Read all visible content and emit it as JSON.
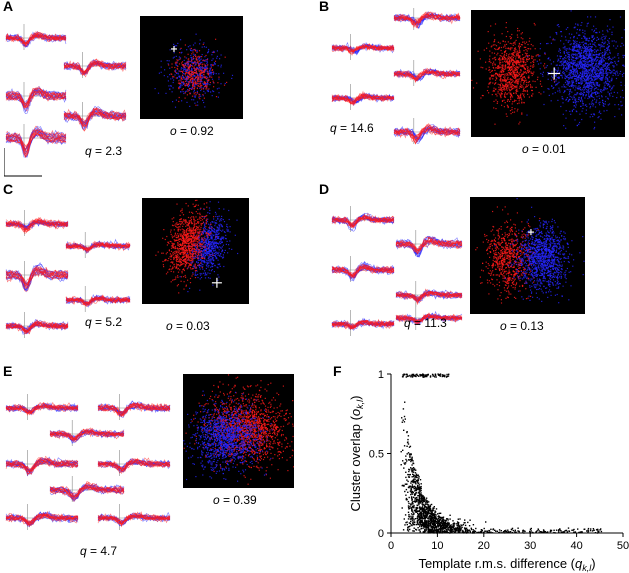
{
  "panels": [
    {
      "label": "A",
      "q": "2.3",
      "o": "0.92"
    },
    {
      "label": "B",
      "q": "14.6",
      "o": "0.01"
    },
    {
      "label": "C",
      "q": "5.2",
      "o": "0.03"
    },
    {
      "label": "D",
      "q": "11.3",
      "o": "0.13"
    },
    {
      "label": "E",
      "q": "4.7",
      "o": "0.39"
    },
    {
      "label": "F"
    }
  ],
  "q_prefix": "q",
  "o_prefix": "o",
  "eq": " = ",
  "colors": {
    "red": "#ff1a1a",
    "blue": "#2626ff",
    "bg": "#000000"
  },
  "chart_data": {
    "type": "scatter",
    "title": "",
    "xlabel_main": "Template r.m.s. difference (",
    "xlabel_var": "q",
    "xlabel_sub": "k,l",
    "xlabel_close": ")",
    "ylabel_main": "Cluster overlap (",
    "ylabel_var": "o",
    "ylabel_sub": "k,l",
    "ylabel_close": ")",
    "xlim": [
      0,
      50
    ],
    "ylim": [
      0,
      1
    ],
    "xticks": [
      0,
      10,
      20,
      30,
      40,
      50
    ],
    "yticks": [
      0,
      0.5,
      1
    ],
    "ytick_labels": [
      "0",
      "0.5",
      "1"
    ],
    "point_color": "#000000",
    "distribution": {
      "n_points": 1500,
      "shape": "overlap decays with template difference; dense near x=3-15, y~0; long tail to x~45 at y~0"
    }
  }
}
